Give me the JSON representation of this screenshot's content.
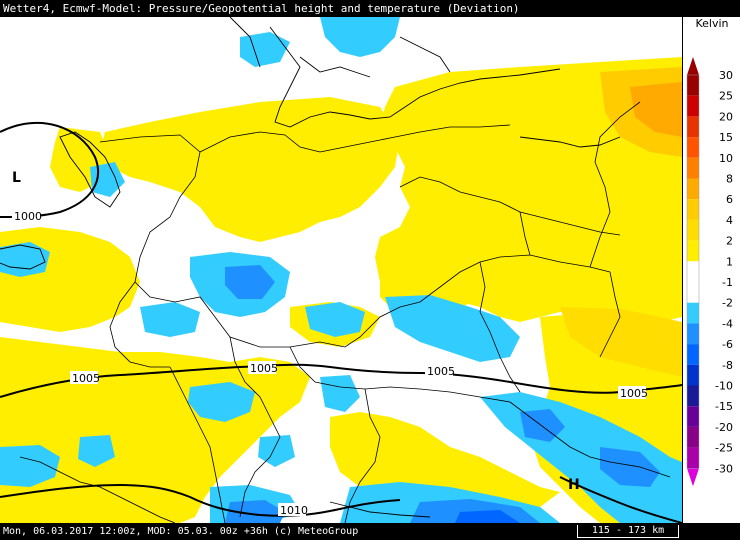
{
  "header": {
    "title": "Wetter4, Ecmwf-Model: Pressure/Geopotential height and temperature (Deviation)"
  },
  "footer": {
    "info": "Mon, 06.03.2017 12:00z, MOD: 05.03. 00z +36h (c) MeteoGroup",
    "scale": "115 - 173 km"
  },
  "legend": {
    "unit": "Kelvin",
    "items": [
      {
        "label": "30",
        "color": "#990000"
      },
      {
        "label": "25",
        "color": "#cc0000"
      },
      {
        "label": "20",
        "color": "#e63300"
      },
      {
        "label": "15",
        "color": "#ff5500"
      },
      {
        "label": "10",
        "color": "#ff7f00"
      },
      {
        "label": "8",
        "color": "#ffaa00"
      },
      {
        "label": "6",
        "color": "#ffcc00"
      },
      {
        "label": "4",
        "color": "#ffdd00"
      },
      {
        "label": "2",
        "color": "#ffee00"
      },
      {
        "label": "1",
        "color": "#ffffff"
      },
      {
        "label": "-1",
        "color": "#ffffff"
      },
      {
        "label": "-2",
        "color": "#33ccff"
      },
      {
        "label": "-4",
        "color": "#1e90ff"
      },
      {
        "label": "-6",
        "color": "#0066ff"
      },
      {
        "label": "-8",
        "color": "#0033cc"
      },
      {
        "label": "-10",
        "color": "#1a1a99"
      },
      {
        "label": "-15",
        "color": "#660099"
      },
      {
        "label": "-20",
        "color": "#880088"
      },
      {
        "label": "-25",
        "color": "#aa00aa"
      },
      {
        "label": "-30",
        "color": "#dd00dd"
      }
    ]
  },
  "map": {
    "pressure_labels": [
      "1000",
      "1005",
      "1005",
      "1005",
      "1005",
      "1010"
    ],
    "centers": [
      {
        "label": "L"
      },
      {
        "label": "H"
      }
    ],
    "colors": {
      "warm": "#ffee00",
      "warm2": "#ffdd00",
      "warm3": "#ffcc00",
      "warm4": "#ffaa00",
      "cold": "#33ccff",
      "cold2": "#1e90ff",
      "cold3": "#0066ff"
    }
  }
}
